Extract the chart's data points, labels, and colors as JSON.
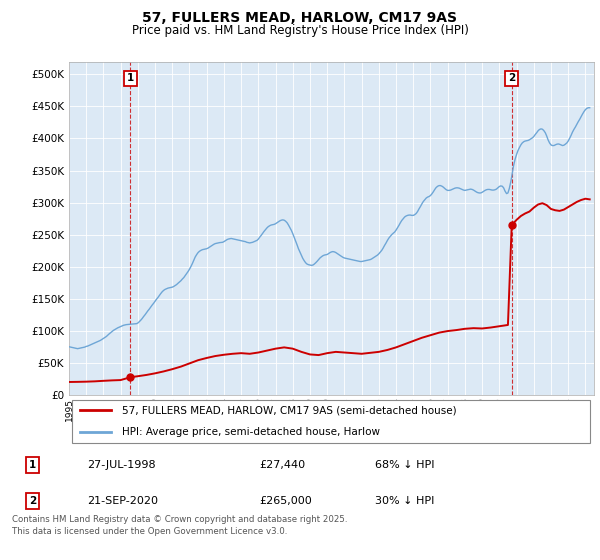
{
  "title": "57, FULLERS MEAD, HARLOW, CM17 9AS",
  "subtitle": "Price paid vs. HM Land Registry's House Price Index (HPI)",
  "legend_line1": "57, FULLERS MEAD, HARLOW, CM17 9AS (semi-detached house)",
  "legend_line2": "HPI: Average price, semi-detached house, Harlow",
  "annotation1_label": "1",
  "annotation1_date": "27-JUL-1998",
  "annotation1_price": "£27,440",
  "annotation1_hpi": "68% ↓ HPI",
  "annotation1_year": 1998.57,
  "annotation1_value": 27440,
  "annotation2_label": "2",
  "annotation2_date": "21-SEP-2020",
  "annotation2_price": "£265,000",
  "annotation2_hpi": "30% ↓ HPI",
  "annotation2_year": 2020.72,
  "annotation2_value": 265000,
  "ylim_min": 0,
  "ylim_max": 520000,
  "yticks": [
    0,
    50000,
    100000,
    150000,
    200000,
    250000,
    300000,
    350000,
    400000,
    450000,
    500000
  ],
  "xlim_min": 1995,
  "xlim_max": 2025.5,
  "background_color": "#ffffff",
  "plot_bg_color": "#dce9f5",
  "grid_color": "#ffffff",
  "hpi_line_color": "#6ea6d6",
  "price_line_color": "#cc0000",
  "annotation_box_color": "#cc0000",
  "footer_text": "Contains HM Land Registry data © Crown copyright and database right 2025.\nThis data is licensed under the Open Government Licence v3.0.",
  "hpi_data": [
    [
      1995.0,
      75000
    ],
    [
      1995.08,
      74500
    ],
    [
      1995.17,
      74000
    ],
    [
      1995.25,
      73500
    ],
    [
      1995.33,
      73000
    ],
    [
      1995.42,
      72500
    ],
    [
      1995.5,
      72000
    ],
    [
      1995.58,
      72500
    ],
    [
      1995.67,
      73000
    ],
    [
      1995.75,
      73500
    ],
    [
      1995.83,
      74000
    ],
    [
      1995.92,
      74500
    ],
    [
      1996.0,
      75500
    ],
    [
      1996.08,
      76000
    ],
    [
      1996.17,
      77000
    ],
    [
      1996.25,
      78000
    ],
    [
      1996.33,
      79000
    ],
    [
      1996.42,
      80000
    ],
    [
      1996.5,
      81000
    ],
    [
      1996.58,
      82000
    ],
    [
      1996.67,
      83000
    ],
    [
      1996.75,
      84000
    ],
    [
      1996.83,
      85000
    ],
    [
      1996.92,
      86500
    ],
    [
      1997.0,
      88000
    ],
    [
      1997.08,
      89500
    ],
    [
      1997.17,
      91000
    ],
    [
      1997.25,
      93000
    ],
    [
      1997.33,
      95000
    ],
    [
      1997.42,
      97000
    ],
    [
      1997.5,
      99000
    ],
    [
      1997.58,
      100500
    ],
    [
      1997.67,
      102000
    ],
    [
      1997.75,
      103500
    ],
    [
      1997.83,
      104500
    ],
    [
      1997.92,
      105500
    ],
    [
      1998.0,
      106500
    ],
    [
      1998.08,
      107500
    ],
    [
      1998.17,
      108500
    ],
    [
      1998.25,
      109000
    ],
    [
      1998.33,
      109500
    ],
    [
      1998.42,
      109800
    ],
    [
      1998.5,
      110000
    ],
    [
      1998.58,
      110200
    ],
    [
      1998.67,
      110400
    ],
    [
      1998.75,
      110600
    ],
    [
      1998.83,
      110800
    ],
    [
      1998.92,
      111000
    ],
    [
      1999.0,
      112000
    ],
    [
      1999.08,
      114000
    ],
    [
      1999.17,
      116500
    ],
    [
      1999.25,
      119000
    ],
    [
      1999.33,
      122000
    ],
    [
      1999.42,
      125000
    ],
    [
      1999.5,
      128000
    ],
    [
      1999.58,
      131000
    ],
    [
      1999.67,
      134000
    ],
    [
      1999.75,
      137000
    ],
    [
      1999.83,
      140000
    ],
    [
      1999.92,
      143000
    ],
    [
      2000.0,
      146000
    ],
    [
      2000.08,
      149000
    ],
    [
      2000.17,
      152000
    ],
    [
      2000.25,
      155000
    ],
    [
      2000.33,
      158000
    ],
    [
      2000.42,
      161000
    ],
    [
      2000.5,
      163000
    ],
    [
      2000.58,
      164500
    ],
    [
      2000.67,
      165500
    ],
    [
      2000.75,
      166500
    ],
    [
      2000.83,
      167000
    ],
    [
      2000.92,
      167500
    ],
    [
      2001.0,
      168000
    ],
    [
      2001.08,
      169000
    ],
    [
      2001.17,
      170500
    ],
    [
      2001.25,
      172000
    ],
    [
      2001.33,
      174000
    ],
    [
      2001.42,
      176000
    ],
    [
      2001.5,
      178000
    ],
    [
      2001.58,
      180500
    ],
    [
      2001.67,
      183000
    ],
    [
      2001.75,
      186000
    ],
    [
      2001.83,
      189000
    ],
    [
      2001.92,
      192500
    ],
    [
      2002.0,
      196000
    ],
    [
      2002.08,
      200000
    ],
    [
      2002.17,
      205000
    ],
    [
      2002.25,
      210000
    ],
    [
      2002.33,
      215000
    ],
    [
      2002.42,
      219000
    ],
    [
      2002.5,
      222000
    ],
    [
      2002.58,
      224000
    ],
    [
      2002.67,
      225500
    ],
    [
      2002.75,
      226500
    ],
    [
      2002.83,
      227000
    ],
    [
      2002.92,
      227500
    ],
    [
      2003.0,
      228000
    ],
    [
      2003.08,
      229000
    ],
    [
      2003.17,
      230500
    ],
    [
      2003.25,
      232000
    ],
    [
      2003.33,
      233500
    ],
    [
      2003.42,
      235000
    ],
    [
      2003.5,
      236000
    ],
    [
      2003.58,
      236500
    ],
    [
      2003.67,
      237000
    ],
    [
      2003.75,
      237500
    ],
    [
      2003.83,
      237800
    ],
    [
      2003.92,
      238000
    ],
    [
      2004.0,
      239000
    ],
    [
      2004.08,
      240500
    ],
    [
      2004.17,
      242000
    ],
    [
      2004.25,
      243000
    ],
    [
      2004.33,
      243500
    ],
    [
      2004.42,
      244000
    ],
    [
      2004.5,
      243500
    ],
    [
      2004.58,
      243000
    ],
    [
      2004.67,
      242500
    ],
    [
      2004.75,
      242000
    ],
    [
      2004.83,
      241500
    ],
    [
      2004.92,
      241000
    ],
    [
      2005.0,
      240500
    ],
    [
      2005.08,
      240000
    ],
    [
      2005.17,
      239500
    ],
    [
      2005.25,
      239000
    ],
    [
      2005.33,
      238000
    ],
    [
      2005.42,
      237500
    ],
    [
      2005.5,
      237000
    ],
    [
      2005.58,
      237500
    ],
    [
      2005.67,
      238000
    ],
    [
      2005.75,
      239000
    ],
    [
      2005.83,
      240000
    ],
    [
      2005.92,
      241000
    ],
    [
      2006.0,
      243000
    ],
    [
      2006.08,
      246000
    ],
    [
      2006.17,
      249000
    ],
    [
      2006.25,
      252000
    ],
    [
      2006.33,
      255000
    ],
    [
      2006.42,
      258000
    ],
    [
      2006.5,
      260500
    ],
    [
      2006.58,
      262500
    ],
    [
      2006.67,
      264000
    ],
    [
      2006.75,
      265000
    ],
    [
      2006.83,
      265500
    ],
    [
      2006.92,
      266000
    ],
    [
      2007.0,
      267000
    ],
    [
      2007.08,
      268500
    ],
    [
      2007.17,
      270000
    ],
    [
      2007.25,
      271500
    ],
    [
      2007.33,
      272500
    ],
    [
      2007.42,
      273000
    ],
    [
      2007.5,
      272500
    ],
    [
      2007.58,
      271000
    ],
    [
      2007.67,
      268500
    ],
    [
      2007.75,
      265000
    ],
    [
      2007.83,
      261000
    ],
    [
      2007.92,
      256500
    ],
    [
      2008.0,
      251500
    ],
    [
      2008.08,
      246000
    ],
    [
      2008.17,
      240000
    ],
    [
      2008.25,
      234000
    ],
    [
      2008.33,
      228000
    ],
    [
      2008.42,
      222500
    ],
    [
      2008.5,
      217500
    ],
    [
      2008.58,
      213000
    ],
    [
      2008.67,
      209000
    ],
    [
      2008.75,
      206000
    ],
    [
      2008.83,
      204000
    ],
    [
      2008.92,
      203000
    ],
    [
      2009.0,
      202500
    ],
    [
      2009.08,
      202000
    ],
    [
      2009.17,
      202500
    ],
    [
      2009.25,
      204000
    ],
    [
      2009.33,
      206000
    ],
    [
      2009.42,
      208500
    ],
    [
      2009.5,
      211000
    ],
    [
      2009.58,
      213500
    ],
    [
      2009.67,
      215500
    ],
    [
      2009.75,
      217000
    ],
    [
      2009.83,
      218000
    ],
    [
      2009.92,
      218500
    ],
    [
      2010.0,
      219000
    ],
    [
      2010.08,
      220500
    ],
    [
      2010.17,
      222000
    ],
    [
      2010.25,
      223000
    ],
    [
      2010.33,
      223500
    ],
    [
      2010.42,
      223000
    ],
    [
      2010.5,
      222000
    ],
    [
      2010.58,
      220500
    ],
    [
      2010.67,
      219000
    ],
    [
      2010.75,
      217500
    ],
    [
      2010.83,
      216000
    ],
    [
      2010.92,
      214500
    ],
    [
      2011.0,
      213500
    ],
    [
      2011.08,
      213000
    ],
    [
      2011.17,
      212500
    ],
    [
      2011.25,
      212000
    ],
    [
      2011.33,
      211500
    ],
    [
      2011.42,
      211000
    ],
    [
      2011.5,
      210500
    ],
    [
      2011.58,
      210000
    ],
    [
      2011.67,
      209500
    ],
    [
      2011.75,
      209000
    ],
    [
      2011.83,
      208500
    ],
    [
      2011.92,
      208000
    ],
    [
      2012.0,
      208000
    ],
    [
      2012.08,
      208500
    ],
    [
      2012.17,
      209000
    ],
    [
      2012.25,
      209500
    ],
    [
      2012.33,
      210000
    ],
    [
      2012.42,
      210500
    ],
    [
      2012.5,
      211000
    ],
    [
      2012.58,
      212000
    ],
    [
      2012.67,
      213500
    ],
    [
      2012.75,
      215000
    ],
    [
      2012.83,
      216500
    ],
    [
      2012.92,
      218000
    ],
    [
      2013.0,
      220000
    ],
    [
      2013.08,
      222500
    ],
    [
      2013.17,
      225500
    ],
    [
      2013.25,
      229000
    ],
    [
      2013.33,
      233000
    ],
    [
      2013.42,
      237000
    ],
    [
      2013.5,
      241000
    ],
    [
      2013.58,
      244500
    ],
    [
      2013.67,
      247500
    ],
    [
      2013.75,
      250000
    ],
    [
      2013.83,
      252000
    ],
    [
      2013.92,
      254000
    ],
    [
      2014.0,
      257000
    ],
    [
      2014.08,
      260500
    ],
    [
      2014.17,
      264500
    ],
    [
      2014.25,
      268500
    ],
    [
      2014.33,
      272000
    ],
    [
      2014.42,
      275000
    ],
    [
      2014.5,
      277500
    ],
    [
      2014.58,
      279000
    ],
    [
      2014.67,
      280000
    ],
    [
      2014.75,
      280500
    ],
    [
      2014.83,
      280500
    ],
    [
      2014.92,
      280000
    ],
    [
      2015.0,
      280000
    ],
    [
      2015.08,
      281000
    ],
    [
      2015.17,
      283000
    ],
    [
      2015.25,
      286000
    ],
    [
      2015.33,
      290000
    ],
    [
      2015.42,
      294000
    ],
    [
      2015.5,
      298000
    ],
    [
      2015.58,
      301500
    ],
    [
      2015.67,
      304500
    ],
    [
      2015.75,
      307000
    ],
    [
      2015.83,
      308500
    ],
    [
      2015.92,
      309500
    ],
    [
      2016.0,
      311000
    ],
    [
      2016.08,
      313500
    ],
    [
      2016.17,
      317000
    ],
    [
      2016.25,
      320500
    ],
    [
      2016.33,
      323500
    ],
    [
      2016.42,
      325500
    ],
    [
      2016.5,
      326500
    ],
    [
      2016.58,
      326500
    ],
    [
      2016.67,
      325500
    ],
    [
      2016.75,
      324000
    ],
    [
      2016.83,
      322000
    ],
    [
      2016.92,
      320000
    ],
    [
      2017.0,
      319000
    ],
    [
      2017.08,
      319000
    ],
    [
      2017.17,
      319500
    ],
    [
      2017.25,
      320500
    ],
    [
      2017.33,
      321500
    ],
    [
      2017.42,
      322500
    ],
    [
      2017.5,
      323000
    ],
    [
      2017.58,
      323000
    ],
    [
      2017.67,
      322500
    ],
    [
      2017.75,
      321500
    ],
    [
      2017.83,
      320500
    ],
    [
      2017.92,
      319500
    ],
    [
      2018.0,
      319000
    ],
    [
      2018.08,
      319500
    ],
    [
      2018.17,
      320000
    ],
    [
      2018.25,
      320500
    ],
    [
      2018.33,
      321000
    ],
    [
      2018.42,
      320500
    ],
    [
      2018.5,
      319500
    ],
    [
      2018.58,
      318000
    ],
    [
      2018.67,
      316500
    ],
    [
      2018.75,
      315500
    ],
    [
      2018.83,
      315000
    ],
    [
      2018.92,
      315000
    ],
    [
      2019.0,
      316000
    ],
    [
      2019.08,
      317500
    ],
    [
      2019.17,
      319000
    ],
    [
      2019.25,
      320000
    ],
    [
      2019.33,
      320500
    ],
    [
      2019.42,
      320500
    ],
    [
      2019.5,
      320000
    ],
    [
      2019.58,
      319500
    ],
    [
      2019.67,
      319500
    ],
    [
      2019.75,
      320000
    ],
    [
      2019.83,
      321000
    ],
    [
      2019.92,
      323000
    ],
    [
      2020.0,
      325000
    ],
    [
      2020.08,
      326000
    ],
    [
      2020.17,
      325500
    ],
    [
      2020.25,
      323000
    ],
    [
      2020.33,
      318000
    ],
    [
      2020.42,
      314000
    ],
    [
      2020.5,
      315000
    ],
    [
      2020.58,
      322000
    ],
    [
      2020.67,
      333000
    ],
    [
      2020.75,
      346000
    ],
    [
      2020.83,
      358000
    ],
    [
      2020.92,
      368000
    ],
    [
      2021.0,
      375000
    ],
    [
      2021.08,
      381000
    ],
    [
      2021.17,
      386000
    ],
    [
      2021.25,
      390000
    ],
    [
      2021.33,
      393000
    ],
    [
      2021.42,
      395000
    ],
    [
      2021.5,
      396000
    ],
    [
      2021.58,
      396500
    ],
    [
      2021.67,
      397000
    ],
    [
      2021.75,
      398000
    ],
    [
      2021.83,
      399500
    ],
    [
      2021.92,
      401000
    ],
    [
      2022.0,
      403000
    ],
    [
      2022.08,
      406000
    ],
    [
      2022.17,
      409000
    ],
    [
      2022.25,
      412000
    ],
    [
      2022.33,
      414000
    ],
    [
      2022.42,
      415000
    ],
    [
      2022.5,
      414500
    ],
    [
      2022.58,
      412500
    ],
    [
      2022.67,
      409000
    ],
    [
      2022.75,
      404000
    ],
    [
      2022.83,
      398000
    ],
    [
      2022.92,
      393000
    ],
    [
      2023.0,
      390000
    ],
    [
      2023.08,
      389000
    ],
    [
      2023.17,
      389000
    ],
    [
      2023.25,
      390000
    ],
    [
      2023.33,
      391000
    ],
    [
      2023.42,
      391500
    ],
    [
      2023.5,
      391000
    ],
    [
      2023.58,
      390000
    ],
    [
      2023.67,
      389000
    ],
    [
      2023.75,
      389500
    ],
    [
      2023.83,
      391000
    ],
    [
      2023.92,
      393000
    ],
    [
      2024.0,
      396000
    ],
    [
      2024.08,
      400000
    ],
    [
      2024.17,
      405000
    ],
    [
      2024.25,
      410000
    ],
    [
      2024.33,
      414000
    ],
    [
      2024.42,
      418000
    ],
    [
      2024.5,
      422000
    ],
    [
      2024.58,
      426000
    ],
    [
      2024.67,
      430000
    ],
    [
      2024.75,
      434000
    ],
    [
      2024.83,
      438000
    ],
    [
      2024.92,
      442000
    ],
    [
      2025.0,
      445000
    ],
    [
      2025.08,
      447000
    ],
    [
      2025.17,
      448000
    ],
    [
      2025.25,
      448000
    ]
  ],
  "price_paid_line": [
    [
      1995.0,
      20000
    ],
    [
      1995.5,
      20200
    ],
    [
      1996.0,
      20500
    ],
    [
      1996.5,
      21000
    ],
    [
      1997.0,
      21800
    ],
    [
      1997.5,
      22500
    ],
    [
      1998.0,
      23000
    ],
    [
      1998.57,
      27440
    ],
    [
      1999.0,
      29000
    ],
    [
      1999.5,
      31000
    ],
    [
      2000.0,
      33500
    ],
    [
      2000.5,
      36500
    ],
    [
      2001.0,
      40000
    ],
    [
      2001.5,
      44000
    ],
    [
      2002.0,
      49000
    ],
    [
      2002.5,
      54000
    ],
    [
      2003.0,
      57500
    ],
    [
      2003.5,
      60500
    ],
    [
      2004.0,
      62500
    ],
    [
      2004.5,
      64000
    ],
    [
      2005.0,
      65000
    ],
    [
      2005.5,
      64000
    ],
    [
      2006.0,
      66000
    ],
    [
      2006.5,
      69000
    ],
    [
      2007.0,
      72000
    ],
    [
      2007.5,
      74000
    ],
    [
      2008.0,
      72000
    ],
    [
      2008.5,
      67000
    ],
    [
      2009.0,
      63000
    ],
    [
      2009.5,
      62000
    ],
    [
      2010.0,
      65000
    ],
    [
      2010.5,
      67000
    ],
    [
      2011.0,
      66000
    ],
    [
      2011.5,
      65000
    ],
    [
      2012.0,
      64000
    ],
    [
      2012.5,
      65500
    ],
    [
      2013.0,
      67000
    ],
    [
      2013.5,
      70000
    ],
    [
      2014.0,
      74000
    ],
    [
      2014.5,
      79000
    ],
    [
      2015.0,
      84000
    ],
    [
      2015.5,
      89000
    ],
    [
      2016.0,
      93000
    ],
    [
      2016.5,
      97000
    ],
    [
      2017.0,
      99500
    ],
    [
      2017.5,
      101000
    ],
    [
      2018.0,
      103000
    ],
    [
      2018.5,
      104000
    ],
    [
      2019.0,
      103500
    ],
    [
      2019.5,
      105000
    ],
    [
      2020.0,
      107000
    ],
    [
      2020.5,
      109000
    ],
    [
      2020.72,
      265000
    ],
    [
      2021.0,
      273000
    ],
    [
      2021.25,
      279000
    ],
    [
      2021.5,
      283000
    ],
    [
      2021.75,
      286000
    ],
    [
      2022.0,
      292000
    ],
    [
      2022.25,
      297000
    ],
    [
      2022.5,
      299000
    ],
    [
      2022.75,
      296000
    ],
    [
      2023.0,
      290000
    ],
    [
      2023.25,
      288000
    ],
    [
      2023.5,
      287000
    ],
    [
      2023.75,
      289000
    ],
    [
      2024.0,
      293000
    ],
    [
      2024.25,
      297000
    ],
    [
      2024.5,
      301000
    ],
    [
      2024.75,
      304000
    ],
    [
      2025.0,
      306000
    ],
    [
      2025.25,
      305000
    ]
  ],
  "price_paid_points": [
    [
      1998.57,
      27440
    ],
    [
      2020.72,
      265000
    ]
  ]
}
